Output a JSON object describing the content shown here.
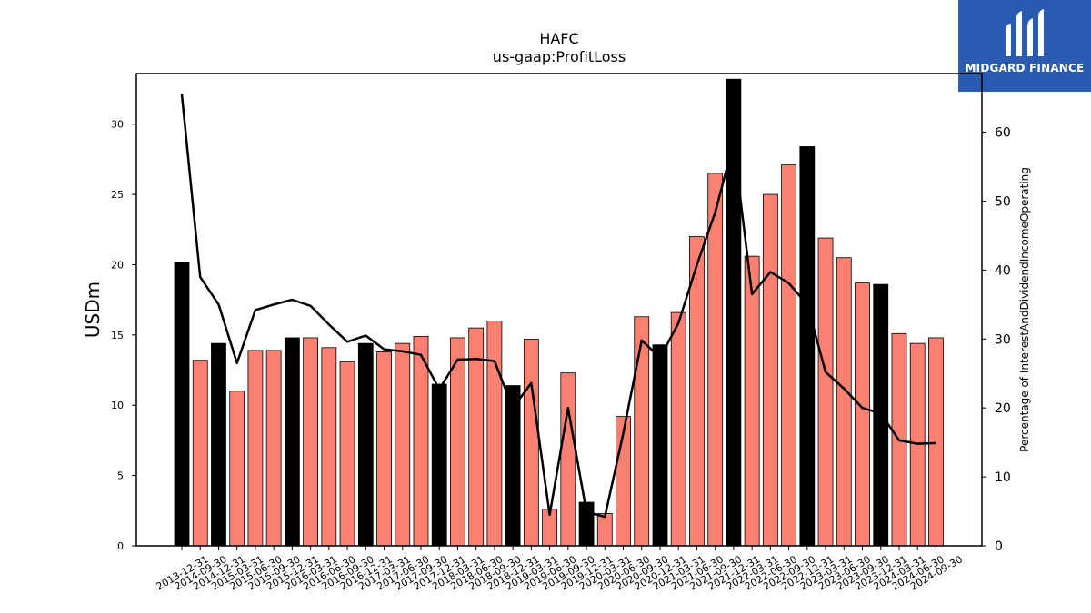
{
  "brand": {
    "name": "MIDGARD FINANCE",
    "color": "#2a5bb0"
  },
  "chart_data": {
    "type": "bar",
    "title": "HAFC",
    "subtitle": "us-gaap:ProfitLoss",
    "ylabel": "USDm",
    "y2label": "Percentage of InterestAndDividendIncomeOperating",
    "ylim": [
      0,
      33.6
    ],
    "y2lim": [
      0,
      68.5
    ],
    "yticks": [
      "0",
      "5",
      "10",
      "15",
      "20",
      "25",
      "30"
    ],
    "y2ticks": [
      "0",
      "10",
      "20",
      "30",
      "40",
      "50",
      "60"
    ],
    "colors": {
      "annual": "#000000",
      "quarterly": "#fa8072",
      "line": "#000000"
    },
    "categories": [
      "2013-12-31",
      "2014-09-30",
      "2014-12-31",
      "2015-03-31",
      "2015-06-30",
      "2015-09-30",
      "2015-12-31",
      "2016-03-31",
      "2016-06-30",
      "2016-09-30",
      "2016-12-31",
      "2017-03-31",
      "2017-06-30",
      "2017-09-30",
      "2017-12-31",
      "2018-03-31",
      "2018-06-30",
      "2018-09-30",
      "2018-12-31",
      "2019-03-31",
      "2019-06-30",
      "2019-09-30",
      "2019-12-31",
      "2020-03-31",
      "2020-06-30",
      "2020-09-30",
      "2020-12-31",
      "2021-03-31",
      "2021-06-30",
      "2021-09-30",
      "2021-12-31",
      "2022-03-31",
      "2022-06-30",
      "2022-09-30",
      "2022-12-31",
      "2023-03-31",
      "2023-06-30",
      "2023-09-30",
      "2023-12-31",
      "2024-03-31",
      "2024-06-30",
      "2024-09-30"
    ],
    "series": [
      {
        "name": "ProfitLoss",
        "axis": "left",
        "values": [
          20.2,
          13.2,
          14.4,
          11.0,
          13.9,
          13.9,
          14.8,
          14.8,
          14.1,
          13.1,
          14.4,
          13.8,
          14.4,
          14.9,
          11.5,
          14.8,
          15.5,
          16.0,
          11.4,
          14.7,
          2.6,
          12.3,
          3.1,
          2.3,
          9.2,
          16.3,
          14.3,
          16.6,
          22.0,
          26.5,
          33.2,
          20.6,
          25.0,
          27.1,
          28.4,
          21.9,
          20.5,
          18.7,
          18.6,
          15.1,
          14.4,
          14.8
        ],
        "annual": [
          true,
          false,
          true,
          false,
          false,
          false,
          true,
          false,
          false,
          false,
          true,
          false,
          false,
          false,
          true,
          false,
          false,
          false,
          true,
          false,
          false,
          false,
          true,
          false,
          false,
          false,
          true,
          false,
          false,
          false,
          true,
          false,
          false,
          false,
          true,
          false,
          false,
          false,
          true,
          false,
          false,
          false
        ]
      },
      {
        "name": "Percentage of InterestAndDividendIncomeOperating",
        "axis": "right",
        "values": [
          65.5,
          39.0,
          35.0,
          26.5,
          34.2,
          35.0,
          35.7,
          34.8,
          32.1,
          29.6,
          30.5,
          28.5,
          28.2,
          27.7,
          22.7,
          27.0,
          27.1,
          26.8,
          20.0,
          23.6,
          4.5,
          20.0,
          4.9,
          4.2,
          16.3,
          29.8,
          27.3,
          32.3,
          40.7,
          48.4,
          58.5,
          36.5,
          39.7,
          38.1,
          35.0,
          25.2,
          22.8,
          20.0,
          19.2,
          15.3,
          14.8,
          14.9
        ]
      }
    ]
  }
}
